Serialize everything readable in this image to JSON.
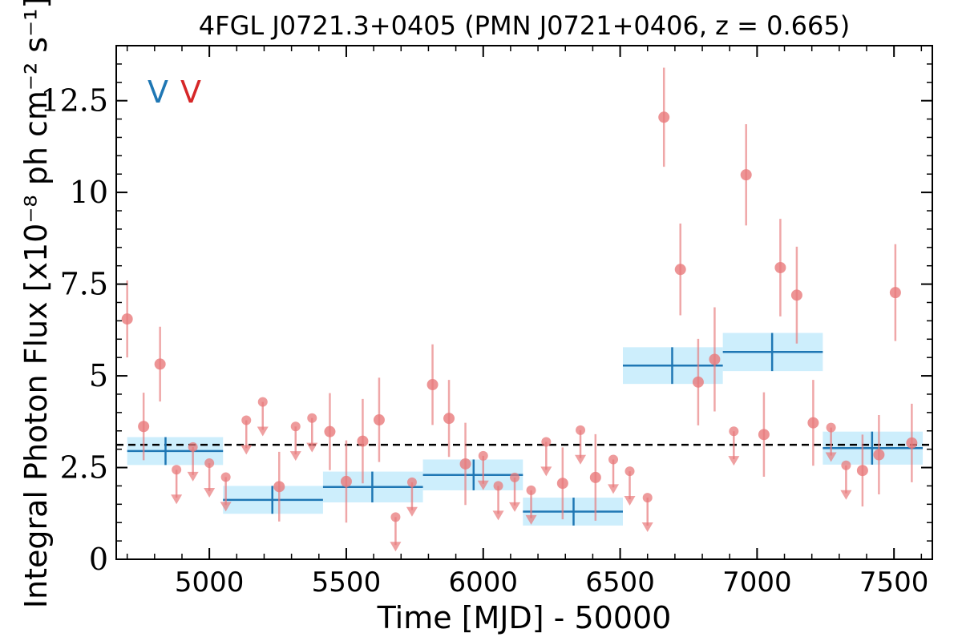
{
  "chart_data": {
    "type": "scatter",
    "title": "4FGL J0721.3+0405 (PMN J0721+0406, z = 0.665)",
    "xlabel": "Time [MJD] - 50000",
    "ylabel": "Integral Photon Flux [x10⁻⁸ ph cm⁻² s⁻¹]",
    "xlim": [
      4660,
      7640
    ],
    "ylim": [
      0,
      14
    ],
    "xticks": [
      5000,
      5500,
      6000,
      6500,
      7000,
      7500
    ],
    "xtick_labels": [
      "5000",
      "5500",
      "6000",
      "6500",
      "7000",
      "7500"
    ],
    "yticks": [
      0,
      2.5,
      5,
      7.5,
      10,
      12.5
    ],
    "ytick_labels": [
      "0",
      "2.5",
      "5",
      "7.5",
      "10",
      "12.5"
    ],
    "annotations": [
      {
        "text": "V",
        "color": "#1f77b4"
      },
      {
        "text": "V",
        "color": "#d62728"
      }
    ],
    "mean_flux": 3.12,
    "colors": {
      "bins_line": "#1f77b4",
      "bins_fill": "#cdeefc",
      "points": "#e8797b",
      "mean_line": "#000000"
    },
    "long_bins": [
      {
        "start": 4700,
        "end": 5050,
        "center": 4840,
        "flux": 2.95,
        "err": 0.38
      },
      {
        "start": 5050,
        "end": 5415,
        "center": 5230,
        "flux": 1.62,
        "err": 0.38
      },
      {
        "start": 5415,
        "end": 5780,
        "center": 5595,
        "flux": 1.97,
        "err": 0.42
      },
      {
        "start": 5780,
        "end": 6145,
        "center": 5965,
        "flux": 2.3,
        "err": 0.42
      },
      {
        "start": 6145,
        "end": 6510,
        "center": 6330,
        "flux": 1.3,
        "err": 0.38
      },
      {
        "start": 6510,
        "end": 6875,
        "center": 6690,
        "flux": 5.28,
        "err": 0.5
      },
      {
        "start": 6875,
        "end": 7240,
        "center": 7055,
        "flux": 5.65,
        "err": 0.52
      },
      {
        "start": 7240,
        "end": 7605,
        "center": 7420,
        "flux": 3.03,
        "err": 0.45
      }
    ],
    "series": [
      {
        "kind": "detections",
        "points": [
          {
            "x": 4700,
            "y": 6.55,
            "err": 1.05
          },
          {
            "x": 4760,
            "y": 3.62,
            "err": 0.92
          },
          {
            "x": 4820,
            "y": 5.32,
            "err": 1.02
          },
          {
            "x": 5255,
            "y": 1.98,
            "err": 0.95
          },
          {
            "x": 5440,
            "y": 3.48,
            "err": 1.05
          },
          {
            "x": 5500,
            "y": 2.12,
            "err": 1.12
          },
          {
            "x": 5560,
            "y": 3.22,
            "err": 1.15
          },
          {
            "x": 5620,
            "y": 3.8,
            "err": 1.15
          },
          {
            "x": 5815,
            "y": 4.76,
            "err": 1.1
          },
          {
            "x": 5875,
            "y": 3.84,
            "err": 1.05
          },
          {
            "x": 5935,
            "y": 2.6,
            "err": 1.12
          },
          {
            "x": 6290,
            "y": 2.07,
            "err": 0.98
          },
          {
            "x": 6410,
            "y": 2.23,
            "err": 1.18
          },
          {
            "x": 6660,
            "y": 12.05,
            "err": 1.35
          },
          {
            "x": 6720,
            "y": 7.9,
            "err": 1.25
          },
          {
            "x": 6785,
            "y": 4.83,
            "err": 1.18
          },
          {
            "x": 6845,
            "y": 5.45,
            "err": 1.42
          },
          {
            "x": 6960,
            "y": 10.48,
            "err": 1.38
          },
          {
            "x": 7025,
            "y": 3.4,
            "err": 1.15
          },
          {
            "x": 7085,
            "y": 7.95,
            "err": 1.33
          },
          {
            "x": 7145,
            "y": 7.2,
            "err": 1.32
          },
          {
            "x": 7205,
            "y": 3.72,
            "err": 1.17
          },
          {
            "x": 7385,
            "y": 2.42,
            "err": 0.98
          },
          {
            "x": 7445,
            "y": 2.85,
            "err": 1.08
          },
          {
            "x": 7505,
            "y": 7.27,
            "err": 1.32
          },
          {
            "x": 7565,
            "y": 3.17,
            "err": 1.07
          }
        ]
      },
      {
        "kind": "upper_limits",
        "points": [
          {
            "x": 4880,
            "y": 2.44
          },
          {
            "x": 4940,
            "y": 3.06
          },
          {
            "x": 5000,
            "y": 2.62
          },
          {
            "x": 5060,
            "y": 2.24
          },
          {
            "x": 5135,
            "y": 3.79
          },
          {
            "x": 5195,
            "y": 4.29
          },
          {
            "x": 5315,
            "y": 3.62
          },
          {
            "x": 5375,
            "y": 3.85
          },
          {
            "x": 5680,
            "y": 1.15
          },
          {
            "x": 5740,
            "y": 2.1
          },
          {
            "x": 6000,
            "y": 2.82
          },
          {
            "x": 6055,
            "y": 2.0
          },
          {
            "x": 6115,
            "y": 2.23
          },
          {
            "x": 6175,
            "y": 1.88
          },
          {
            "x": 6230,
            "y": 3.2
          },
          {
            "x": 6355,
            "y": 3.52
          },
          {
            "x": 6475,
            "y": 2.72
          },
          {
            "x": 6535,
            "y": 2.4
          },
          {
            "x": 6600,
            "y": 1.68
          },
          {
            "x": 6915,
            "y": 3.49
          },
          {
            "x": 7270,
            "y": 3.59
          },
          {
            "x": 7325,
            "y": 2.56
          }
        ]
      }
    ]
  }
}
